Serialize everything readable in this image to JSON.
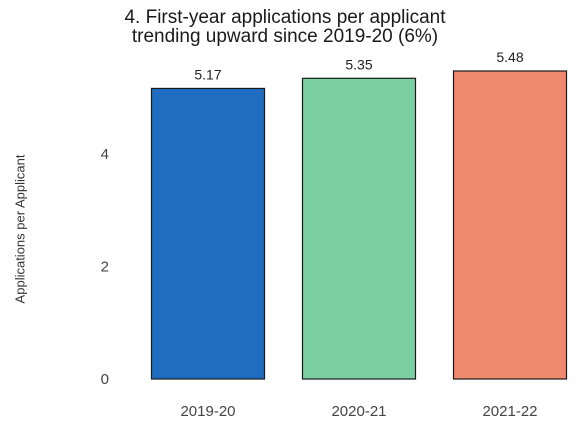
{
  "chart_data": {
    "type": "bar",
    "title_lines": [
      "4. First-year applications per applicant",
      "trending upward since 2019-20 (6%)"
    ],
    "xlabel": "",
    "ylabel": "Applications per Applicant",
    "categories": [
      "2019-20",
      "2020-21",
      "2021-22"
    ],
    "values": [
      5.17,
      5.35,
      5.48
    ],
    "data_labels": [
      "5.17",
      "5.35",
      "5.48"
    ],
    "colors": [
      "#1f6cc1",
      "#7bd0a3",
      "#ef8a6e"
    ],
    "yticks": [
      0,
      2,
      4
    ],
    "ylim": [
      0,
      5.48
    ],
    "grid": false,
    "legend": false
  }
}
